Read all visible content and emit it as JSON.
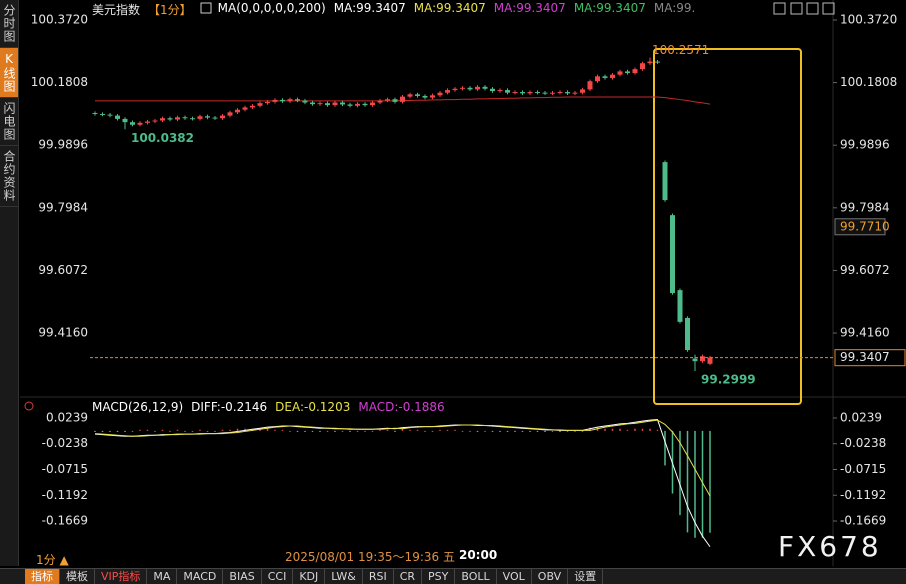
{
  "ui": {
    "sidebar": [
      "分时图",
      "K线图",
      "闪电图",
      "合约资料"
    ],
    "toolbar": [
      "指标",
      "模板",
      "VIP指标",
      "MA",
      "MACD",
      "BIAS",
      "CCI",
      "KDJ",
      "LW&",
      "RSI",
      "CR",
      "PSY",
      "BOLL",
      "VOL",
      "OBV",
      "设置"
    ],
    "period": "1分 ▲",
    "time_range": "2025/08/01 19:35～19:36 五",
    "time_now": "20:00",
    "watermark": "FX678"
  },
  "chart_data": [
    {
      "type": "candlestick",
      "title": "美元指数",
      "period": "【1分】",
      "legend": [
        {
          "name": "MA(0,0,0,0,0,200)",
          "color": "#ffffff"
        },
        {
          "name": "MA:99.3407",
          "color": "#ffffff"
        },
        {
          "name": "MA:99.3407",
          "color": "#e8e04a"
        },
        {
          "name": "MA:99.3407",
          "color": "#d040d0"
        },
        {
          "name": "MA:99.3407",
          "color": "#3fc060"
        },
        {
          "name": "MA:99.",
          "color": "#888888"
        }
      ],
      "up_color": "#f04848",
      "down_color": "#4dbb8a",
      "ylim": [
        99.242,
        100.372
      ],
      "yticks": [
        {
          "value": 100.372,
          "label": "100.3720"
        },
        100.1808,
        99.9896,
        99.7984,
        99.6072,
        {
          "value": 99.416,
          "label": "99.4160"
        }
      ],
      "open": [
        100.088,
        100.085,
        100.083,
        100.08,
        100.07,
        100.06,
        100.052,
        100.058,
        100.062,
        100.065,
        100.072,
        100.068,
        100.075,
        100.072,
        100.07,
        100.078,
        100.074,
        100.072,
        100.08,
        100.09,
        100.098,
        100.105,
        100.11,
        100.118,
        100.122,
        100.128,
        100.124,
        100.13,
        100.126,
        100.12,
        100.115,
        100.118,
        100.112,
        100.12,
        100.114,
        100.11,
        100.116,
        100.112,
        100.12,
        100.126,
        100.13,
        100.122,
        100.138,
        100.145,
        100.14,
        100.135,
        100.142,
        100.15,
        100.158,
        100.162,
        100.165,
        100.16,
        100.168,
        100.162,
        100.155,
        100.158,
        100.15,
        100.152,
        100.148,
        100.152,
        100.15,
        100.148,
        100.15,
        100.152,
        100.148,
        100.15,
        100.16,
        100.185,
        100.2,
        100.195,
        100.205,
        100.215,
        100.21,
        100.222,
        100.24,
        100.245,
        99.938,
        99.776,
        99.547,
        99.462,
        99.338,
        99.33,
        99.322
      ],
      "high": [
        100.093,
        100.09,
        100.088,
        100.085,
        100.075,
        100.065,
        100.063,
        100.067,
        100.07,
        100.077,
        100.077,
        100.08,
        100.08,
        100.077,
        100.083,
        100.083,
        100.079,
        100.085,
        100.095,
        100.103,
        100.11,
        100.115,
        100.123,
        100.127,
        100.133,
        100.133,
        100.135,
        100.135,
        100.131,
        100.125,
        100.123,
        100.123,
        100.125,
        100.125,
        100.119,
        100.121,
        100.121,
        100.125,
        100.131,
        100.135,
        100.135,
        100.143,
        100.15,
        100.15,
        100.145,
        100.147,
        100.155,
        100.163,
        100.167,
        100.17,
        100.17,
        100.173,
        100.173,
        100.167,
        100.163,
        100.163,
        100.157,
        100.157,
        100.157,
        100.157,
        100.155,
        100.155,
        100.157,
        100.157,
        100.155,
        100.165,
        100.19,
        100.205,
        100.205,
        100.21,
        100.22,
        100.22,
        100.227,
        100.245,
        100.2571,
        100.25,
        99.943,
        99.781,
        99.552,
        99.467,
        99.35,
        99.35,
        99.346
      ],
      "low": [
        100.08,
        100.078,
        100.075,
        100.065,
        100.0382,
        100.047,
        100.047,
        100.053,
        100.057,
        100.06,
        100.063,
        100.063,
        100.067,
        100.065,
        100.065,
        100.069,
        100.067,
        100.067,
        100.075,
        100.085,
        100.093,
        100.1,
        100.105,
        100.113,
        100.117,
        100.119,
        100.119,
        100.121,
        100.115,
        100.11,
        100.11,
        100.107,
        100.107,
        100.109,
        100.105,
        100.105,
        100.107,
        100.107,
        100.115,
        100.121,
        100.117,
        100.117,
        100.133,
        100.135,
        100.13,
        100.13,
        100.137,
        100.145,
        100.153,
        100.157,
        100.155,
        100.155,
        100.157,
        100.15,
        100.15,
        100.145,
        100.145,
        100.143,
        100.143,
        100.145,
        100.143,
        100.143,
        100.145,
        100.143,
        100.143,
        100.145,
        100.155,
        100.18,
        100.19,
        100.19,
        100.2,
        100.205,
        100.205,
        100.217,
        100.235,
        100.238,
        99.817,
        99.533,
        99.445,
        99.359,
        99.2999,
        99.325,
        99.318
      ],
      "close": [
        100.085,
        100.083,
        100.08,
        100.07,
        100.06,
        100.052,
        100.058,
        100.062,
        100.065,
        100.072,
        100.068,
        100.075,
        100.072,
        100.07,
        100.078,
        100.074,
        100.072,
        100.08,
        100.09,
        100.098,
        100.105,
        100.11,
        100.118,
        100.122,
        100.128,
        100.124,
        100.13,
        100.126,
        100.12,
        100.115,
        100.118,
        100.112,
        100.12,
        100.114,
        100.11,
        100.116,
        100.112,
        100.12,
        100.126,
        100.13,
        100.122,
        100.138,
        100.145,
        100.14,
        100.135,
        100.142,
        100.15,
        100.158,
        100.162,
        100.165,
        100.16,
        100.168,
        100.162,
        100.155,
        100.158,
        100.15,
        100.152,
        100.148,
        100.152,
        100.15,
        100.148,
        100.15,
        100.152,
        100.148,
        100.15,
        100.16,
        100.185,
        100.2,
        100.195,
        100.205,
        100.215,
        100.21,
        100.222,
        100.24,
        100.245,
        100.243,
        99.822,
        99.538,
        99.45,
        99.364,
        99.33,
        99.345,
        99.3407
      ],
      "ma": {
        "color": "#c62828",
        "values": [
          100.125,
          100.125,
          100.125,
          100.125,
          100.125,
          100.125,
          100.125,
          100.125,
          100.125,
          100.125,
          100.125,
          100.125,
          100.125,
          100.125,
          100.125,
          100.125,
          100.125,
          100.125,
          100.125,
          100.125,
          100.125,
          100.125,
          100.125,
          100.125,
          100.125,
          100.125,
          100.125,
          100.125,
          100.125,
          100.125,
          100.125,
          100.125,
          100.125,
          100.125,
          100.125,
          100.125,
          100.125,
          100.125,
          100.125,
          100.125,
          100.125,
          100.126,
          100.126,
          100.127,
          100.127,
          100.128,
          100.128,
          100.129,
          100.129,
          100.13,
          100.13,
          100.131,
          100.131,
          100.132,
          100.132,
          100.133,
          100.133,
          100.134,
          100.134,
          100.135,
          100.135,
          100.136,
          100.136,
          100.137,
          100.137,
          100.137,
          100.137,
          100.137,
          100.137,
          100.137,
          100.137,
          100.137,
          100.137,
          100.137,
          100.137,
          100.137,
          100.135,
          100.132,
          100.129,
          100.126,
          100.122,
          100.119,
          100.115
        ]
      },
      "annotations": {
        "high": [
          100.2571
        ],
        "low": [
          100.0382,
          99.2999
        ]
      },
      "cursor": {
        "value": 99.771,
        "label": "99.7710"
      },
      "price_line": {
        "value": 99.3407,
        "label": "99.3407",
        "color": "#e08a2a"
      }
    },
    {
      "type": "macd",
      "legend": [
        {
          "name": "MACD(26,12,9)",
          "color": "#ffffff"
        },
        {
          "name": "DIFF:-0.2146",
          "color": "#ffffff"
        },
        {
          "name": "DEA:-0.1203",
          "color": "#e8e04a"
        },
        {
          "name": "MACD:-0.1886",
          "color": "#d040d0"
        }
      ],
      "ylim": [
        -0.2206,
        0.0387
      ],
      "yticks": [
        0.0239,
        -0.0238,
        -0.0715,
        -0.1192,
        -0.1669
      ],
      "series": [
        {
          "color": "#ffffff",
          "values": [
            -0.006,
            -0.007,
            -0.008,
            -0.009,
            -0.01,
            -0.01,
            -0.009,
            -0.008,
            -0.008,
            -0.007,
            -0.007,
            -0.006,
            -0.006,
            -0.006,
            -0.005,
            -0.005,
            -0.005,
            -0.004,
            -0.003,
            -0.001,
            0.001,
            0.003,
            0.005,
            0.007,
            0.008,
            0.009,
            0.009,
            0.008,
            0.007,
            0.006,
            0.005,
            0.005,
            0.004,
            0.004,
            0.003,
            0.003,
            0.003,
            0.003,
            0.004,
            0.005,
            0.004,
            0.006,
            0.007,
            0.008,
            0.008,
            0.008,
            0.009,
            0.01,
            0.011,
            0.011,
            0.011,
            0.01,
            0.01,
            0.009,
            0.008,
            0.007,
            0.006,
            0.005,
            0.004,
            0.003,
            0.002,
            0.002,
            0.001,
            0.001,
            0.001,
            0.001,
            0.004,
            0.007,
            0.009,
            0.011,
            0.013,
            0.014,
            0.016,
            0.018,
            0.02,
            0.021,
            -0.02,
            -0.06,
            -0.1,
            -0.14,
            -0.17,
            -0.195,
            -0.2146
          ]
        },
        {
          "color": "#e8e04a",
          "values": [
            -0.005,
            -0.006,
            -0.007,
            -0.008,
            -0.009,
            -0.01,
            -0.01,
            -0.009,
            -0.008,
            -0.008,
            -0.007,
            -0.007,
            -0.006,
            -0.006,
            -0.006,
            -0.005,
            -0.005,
            -0.005,
            -0.004,
            -0.003,
            -0.001,
            0.001,
            0.003,
            0.005,
            0.007,
            0.008,
            0.009,
            0.009,
            0.008,
            0.007,
            0.006,
            0.005,
            0.005,
            0.004,
            0.004,
            0.003,
            0.003,
            0.003,
            0.003,
            0.004,
            0.005,
            0.004,
            0.006,
            0.007,
            0.008,
            0.008,
            0.008,
            0.009,
            0.01,
            0.011,
            0.011,
            0.011,
            0.01,
            0.01,
            0.009,
            0.008,
            0.007,
            0.006,
            0.005,
            0.004,
            0.003,
            0.002,
            0.002,
            0.001,
            0.001,
            0.001,
            0.001,
            0.004,
            0.007,
            0.009,
            0.011,
            0.013,
            0.014,
            0.016,
            0.018,
            0.02,
            0.012,
            -0.002,
            -0.022,
            -0.046,
            -0.071,
            -0.096,
            -0.1203
          ]
        }
      ],
      "hist": {
        "up_color": "#e04848",
        "down_color": "#4dbb8a",
        "values": [
          -0.002,
          -0.002,
          -0.002,
          -0.002,
          -0.002,
          0,
          0.002,
          0.002,
          0,
          0.002,
          0,
          0.002,
          0,
          0,
          0.002,
          0,
          0,
          0.002,
          0.002,
          0.004,
          0.004,
          0.004,
          0.004,
          0.004,
          0.002,
          0.002,
          0,
          -0.002,
          -0.002,
          -0.002,
          -0.002,
          0,
          -0.002,
          0,
          -0.002,
          0,
          0,
          0,
          0.002,
          0.002,
          -0.002,
          0.004,
          0.002,
          0.002,
          0,
          0,
          0.002,
          0.002,
          0.002,
          0,
          0,
          -0.002,
          0,
          -0.002,
          -0.002,
          -0.002,
          -0.002,
          -0.002,
          -0.002,
          -0.002,
          -0.002,
          0,
          -0.002,
          0,
          0,
          0,
          0.006,
          0.006,
          0.004,
          0.004,
          0.004,
          0.002,
          0.004,
          0.004,
          0.004,
          0.002,
          -0.064,
          -0.116,
          -0.156,
          -0.188,
          -0.198,
          -0.198,
          -0.1886
        ]
      }
    }
  ]
}
